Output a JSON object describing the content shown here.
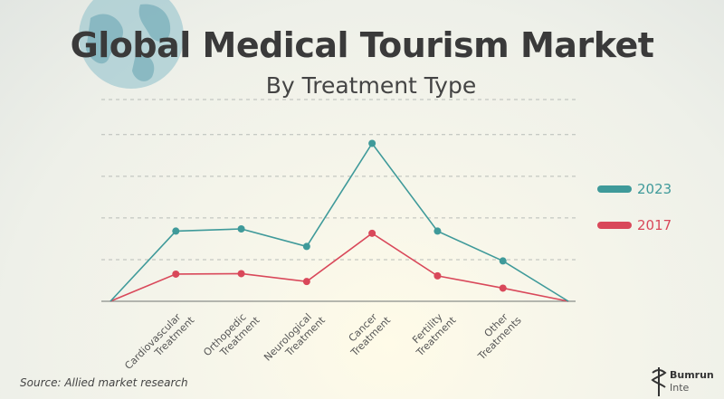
{
  "header": {
    "title": "Global Medical Tourism Market",
    "subtitle": "By Treatment Type"
  },
  "source": "Source: Allied market research",
  "logo": {
    "name": "Bumrun",
    "sub": "Inte"
  },
  "colors": {
    "series_2023": "#3f9a9a",
    "series_2017": "#d9485a",
    "title": "#3a3a3a",
    "grid": "#b8bcb8",
    "globe": "#7fb6c2"
  },
  "chart_data": {
    "type": "line",
    "categories": [
      "",
      "Cardiovascular Treatment",
      "Orthopedic Treatment",
      "Neurological Treatment",
      "Cancer Treatment",
      "Fertility Treatment",
      "Other Treatments",
      ""
    ],
    "category_lines": [
      [],
      [
        "Cardiovascular",
        "Treatment"
      ],
      [
        "Orthopedic",
        "Treatment"
      ],
      [
        "Neurological",
        "Treatment"
      ],
      [
        "Cancer",
        "Treatment"
      ],
      [
        "Fertility",
        "Treatment"
      ],
      [
        "Other",
        "Treatments"
      ],
      []
    ],
    "series": [
      {
        "name": "2023",
        "values": [
          0,
          1.6,
          1.65,
          1.25,
          3.6,
          1.6,
          0.92,
          0
        ]
      },
      {
        "name": "2017",
        "values": [
          0,
          0.62,
          0.63,
          0.45,
          1.55,
          0.58,
          0.3,
          0
        ]
      }
    ],
    "ylim": [
      0,
      4.6
    ],
    "grid": true,
    "legend": "right",
    "title": "Global Medical Tourism Market",
    "subtitle": "By Treatment Type",
    "xlabel": "",
    "ylabel": ""
  }
}
